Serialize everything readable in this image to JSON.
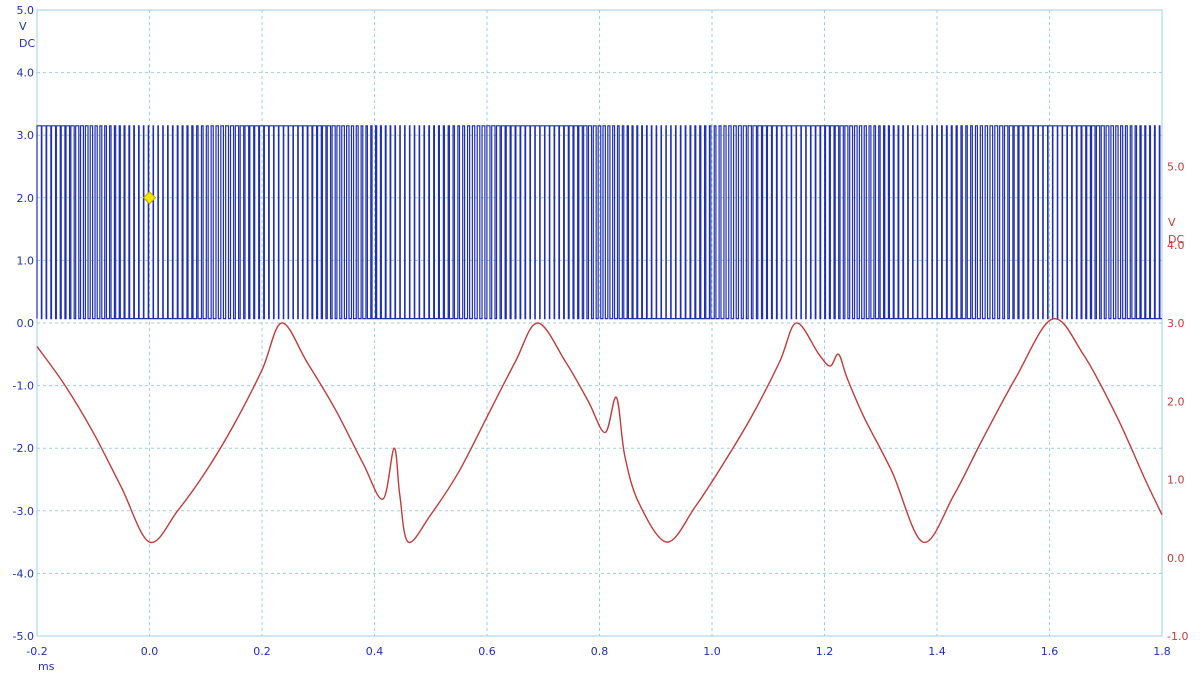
{
  "chart_data": {
    "type": "line",
    "x": {
      "unit": "ms",
      "range": [
        -0.2,
        1.8
      ],
      "ticks": [
        "-0.2",
        "0.0",
        "0.2",
        "0.4",
        "0.6",
        "0.8",
        "1.0",
        "1.2",
        "1.4",
        "1.6",
        "1.8"
      ]
    },
    "left_axis": {
      "range": [
        -5.0,
        5.0
      ],
      "unit": "V",
      "coupling": "DC",
      "ticks": [
        "5.0",
        "4.0",
        "3.0",
        "2.0",
        "1.0",
        "0.0",
        "-1.0",
        "-2.0",
        "-3.0",
        "-4.0",
        "-5.0"
      ],
      "color": "#1f2fb5"
    },
    "right_axis": {
      "range": [
        -1.0,
        7.0
      ],
      "unit": "V",
      "coupling": "DC",
      "ticks": [
        "5.0",
        "4.0",
        "3.0",
        "2.0",
        "1.0",
        "0.0",
        "-1.0"
      ],
      "color": "#c23b3b"
    },
    "grid": true,
    "series": [
      {
        "axis": "left",
        "color": "#1f2fb5",
        "kind": "pwm",
        "high_level": 3.15,
        "low_level": 0.07,
        "pulse_period_ms": 0.0086,
        "duty_cycle_min": 0.08,
        "duty_cycle_max": 0.92,
        "modulation_period_ms": 0.455,
        "modulation_peak_ms": 0.235
      },
      {
        "axis": "right",
        "color": "#c23b3b",
        "kind": "waveform",
        "points": [
          [
            -0.2,
            2.7
          ],
          [
            -0.15,
            2.2
          ],
          [
            -0.1,
            1.6
          ],
          [
            -0.05,
            0.9
          ],
          [
            0.0,
            0.2
          ],
          [
            0.05,
            0.6
          ],
          [
            0.1,
            1.1
          ],
          [
            0.15,
            1.7
          ],
          [
            0.2,
            2.4
          ],
          [
            0.235,
            3.0
          ],
          [
            0.28,
            2.5
          ],
          [
            0.33,
            1.9
          ],
          [
            0.38,
            1.2
          ],
          [
            0.415,
            0.75
          ],
          [
            0.435,
            1.4
          ],
          [
            0.445,
            0.8
          ],
          [
            0.46,
            0.2
          ],
          [
            0.5,
            0.55
          ],
          [
            0.55,
            1.1
          ],
          [
            0.6,
            1.8
          ],
          [
            0.65,
            2.5
          ],
          [
            0.69,
            3.0
          ],
          [
            0.74,
            2.5
          ],
          [
            0.78,
            2.0
          ],
          [
            0.81,
            1.6
          ],
          [
            0.83,
            2.05
          ],
          [
            0.845,
            1.3
          ],
          [
            0.87,
            0.7
          ],
          [
            0.92,
            0.2
          ],
          [
            0.97,
            0.65
          ],
          [
            1.02,
            1.2
          ],
          [
            1.07,
            1.8
          ],
          [
            1.12,
            2.5
          ],
          [
            1.15,
            3.0
          ],
          [
            1.19,
            2.6
          ],
          [
            1.21,
            2.45
          ],
          [
            1.225,
            2.6
          ],
          [
            1.24,
            2.3
          ],
          [
            1.27,
            1.8
          ],
          [
            1.32,
            1.1
          ],
          [
            1.375,
            0.2
          ],
          [
            1.43,
            0.8
          ],
          [
            1.48,
            1.5
          ],
          [
            1.54,
            2.3
          ],
          [
            1.605,
            3.05
          ],
          [
            1.66,
            2.6
          ],
          [
            1.72,
            1.8
          ],
          [
            1.77,
            1.0
          ],
          [
            1.8,
            0.55
          ]
        ]
      }
    ],
    "annotations": [
      {
        "shape": "diamond",
        "color": "#f5e400",
        "x": 0.0,
        "y_left": 2.0
      }
    ]
  }
}
